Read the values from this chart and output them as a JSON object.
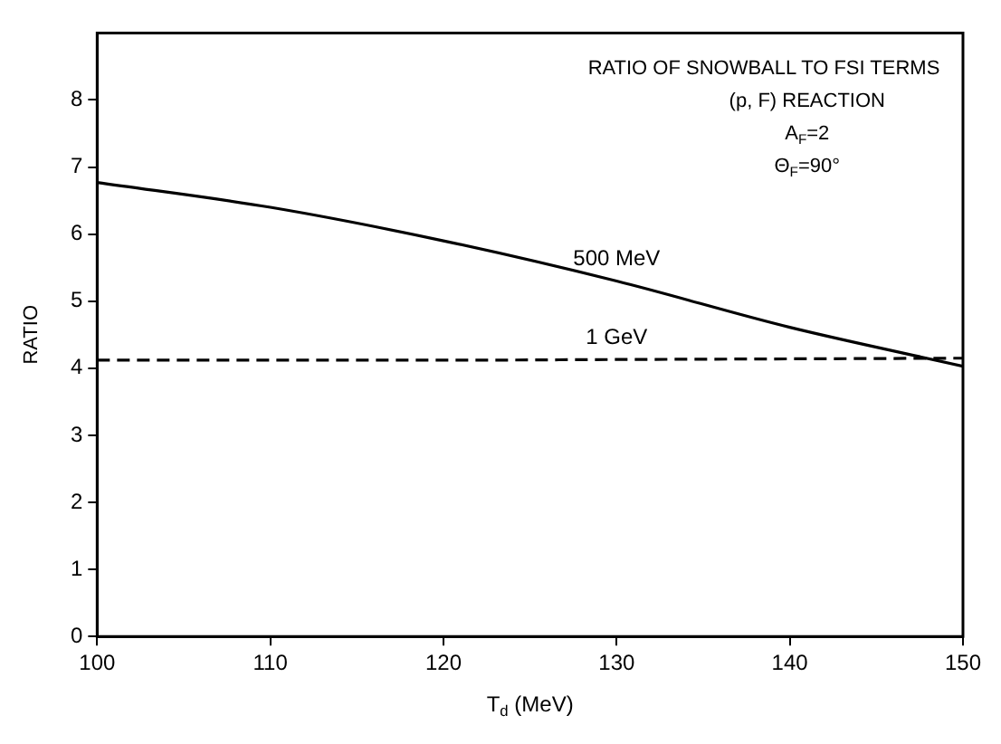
{
  "chart_data": {
    "type": "line",
    "xlabel": "T$_{d}$ (MeV)",
    "ylabel": "RATIO",
    "annotations": [
      "RATIO OF SNOWBALL TO FSI TERMS",
      "(p, F) REACTION",
      "A$_{F}$=2",
      "Θ$_{F}$=90°"
    ],
    "x": [
      100,
      110,
      120,
      130,
      140,
      150
    ],
    "series": [
      {
        "name": "500 MeV",
        "color": "#000000",
        "line_style": "solid",
        "values": [
          6.77,
          6.4,
          5.9,
          5.3,
          4.61,
          4.03
        ]
      },
      {
        "name": "1 GeV",
        "color": "#000000",
        "line_style": "dashed",
        "values": [
          4.12,
          4.12,
          4.12,
          4.13,
          4.14,
          4.15
        ]
      }
    ],
    "xlim": [
      100,
      150
    ],
    "xticks": [
      100,
      110,
      120,
      130,
      140,
      150
    ],
    "ylim": [
      0,
      9
    ],
    "yticks": [
      0,
      1,
      2,
      3,
      4,
      5,
      6,
      7,
      8
    ],
    "grid": false,
    "legend": false,
    "marker": "none"
  }
}
